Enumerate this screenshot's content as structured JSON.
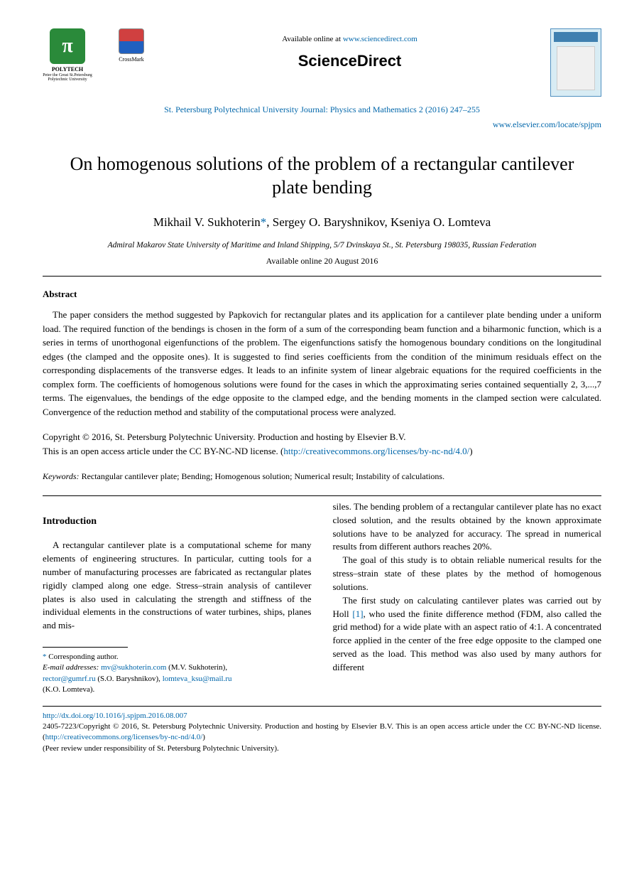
{
  "header": {
    "available_text": "Available online at ",
    "sciencedirect_url": "www.sciencedirect.com",
    "sd_brand": "ScienceDirect",
    "journal_citation": "St. Petersburg Polytechnical University Journal: Physics and Mathematics 2 (2016) 247–255",
    "elsevier_locate": "www.elsevier.com/locate/spjpm",
    "polytech_name": "POLYTECH",
    "polytech_sub": "Peter the Great St.Petersburg Polytechnic University",
    "crossmark_label": "CrossMark",
    "pi_symbol": "π"
  },
  "title": "On homogenous solutions of the problem of a rectangular cantilever plate bending",
  "authors": "Mikhail V. Sukhoterin*, Sergey O. Baryshnikov, Kseniya O. Lomteva",
  "affiliation": "Admiral Makarov State University of Maritime and Inland Shipping, 5/7 Dvinskaya St., St. Petersburg 198035, Russian Federation",
  "available_date": "Available online 20 August 2016",
  "abstract": {
    "heading": "Abstract",
    "text": "The paper considers the method suggested by Papkovich for rectangular plates and its application for a cantilever plate bending under a uniform load. The required function of the bendings is chosen in the form of a sum of the corresponding beam function and a biharmonic function, which is a series in terms of unorthogonal eigenfunctions of the problem. The eigenfunctions satisfy the homogenous boundary conditions on the longitudinal edges (the clamped and the opposite ones). It is suggested to find series coefficients from the condition of the minimum residuals effect on the corresponding displacements of the transverse edges. It leads to an infinite system of linear algebraic equations for the required coefficients in the complex form. The coefficients of homogenous solutions were found for the cases in which the approximating series contained sequentially 2, 3,...,7 terms. The eigenvalues, the bendings of the edge opposite to the clamped edge, and the bending moments in the clamped section were calculated. Convergence of the reduction method and stability of the computational process were analyzed."
  },
  "copyright": {
    "line1": "Copyright © 2016, St. Petersburg Polytechnic University. Production and hosting by Elsevier B.V.",
    "line2": "This is an open access article under the CC BY-NC-ND license. (",
    "license_url": "http://creativecommons.org/licenses/by-nc-nd/4.0/",
    "close": ")"
  },
  "keywords": {
    "label": "Keywords: ",
    "text": "Rectangular cantilever plate; Bending; Homogenous solution; Numerical result; Instability of calculations."
  },
  "introduction": {
    "heading": "Introduction",
    "col1_p1": "A rectangular cantilever plate is a computational scheme for many elements of engineering structures. In particular, cutting tools for a number of manufacturing processes are fabricated as rectangular plates rigidly clamped along one edge. Stress–strain analysis of cantilever plates is also used in calculating the strength and stiffness of the individual elements in the constructions of water turbines, ships, planes and mis-",
    "col2_p1": "siles. The bending problem of a rectangular cantilever plate has no exact closed solution, and the results obtained by the known approximate solutions have to be analyzed for accuracy. The spread in numerical results from different authors reaches 20%.",
    "col2_p2": "The goal of this study is to obtain reliable numerical results for the stress–strain state of these plates by the method of homogenous solutions.",
    "col2_p3a": "The first study on calculating cantilever plates was carried out by Holl ",
    "col2_ref": "[1]",
    "col2_p3b": ", who used the finite difference method (FDM, also called the grid method) for a wide plate with an aspect ratio of 4:1. A concentrated force applied in the center of the free edge opposite to the clamped one served as the load. This method was also used by many authors for different"
  },
  "footnotes": {
    "corresponding": "Corresponding author.",
    "email_label": "E-mail addresses: ",
    "email1": "mv@sukhoterin.com",
    "name1": " (M.V. Sukhoterin), ",
    "email2": "rector@gumrf.ru",
    "name2": " (S.O. Baryshnikov), ",
    "email3": "lomteva_ksu@mail.ru",
    "name3": " (K.O. Lomteva)."
  },
  "bottom": {
    "doi": "http://dx.doi.org/10.1016/j.spjpm.2016.08.007",
    "issn_text": "2405-7223/Copyright © 2016, St. Petersburg Polytechnic University. Production and hosting by Elsevier B.V. This is an open access article under the CC BY-NC-ND license. (",
    "license_url": "http://creativecommons.org/licenses/by-nc-nd/4.0/",
    "close": ")",
    "peer_review": "(Peer review under responsibility of St. Petersburg Polytechnic University)."
  },
  "colors": {
    "link_color": "#0066aa",
    "polytech_green": "#2a8a3a",
    "text_color": "#000000",
    "background": "#ffffff"
  }
}
